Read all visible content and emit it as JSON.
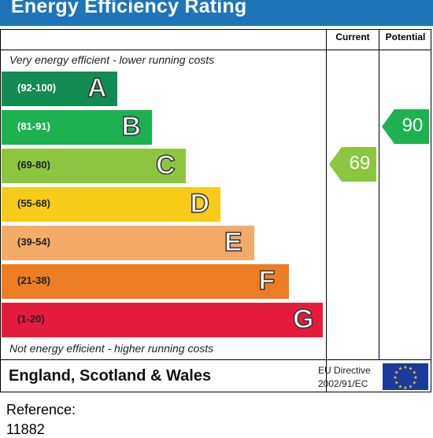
{
  "header": {
    "title": "Energy Efficiency Rating"
  },
  "columns": {
    "current": "Current",
    "potential": "Potential"
  },
  "captions": {
    "top": "Very energy efficient - lower running costs",
    "bottom": "Not energy efficient - higher running costs"
  },
  "chart_data": {
    "type": "bar",
    "title": "Energy Efficiency Rating",
    "bands": [
      {
        "letter": "A",
        "range": "(92-100)",
        "color": "#138b55",
        "range_color": "#ffffff"
      },
      {
        "letter": "B",
        "range": "(81-91)",
        "color": "#1db150",
        "range_color": "#ffffff"
      },
      {
        "letter": "C",
        "range": "(69-80)",
        "color": "#8cc641",
        "range_color": "#222222"
      },
      {
        "letter": "D",
        "range": "(55-68)",
        "color": "#f6cc18",
        "range_color": "#222222"
      },
      {
        "letter": "E",
        "range": "(39-54)",
        "color": "#f3ab69",
        "range_color": "#222222"
      },
      {
        "letter": "F",
        "range": "(21-38)",
        "color": "#ed7d24",
        "range_color": "#222222"
      },
      {
        "letter": "G",
        "range": "(1-20)",
        "color": "#e41b3b",
        "range_color": "#222222"
      }
    ],
    "current": {
      "value": 69,
      "band": "C",
      "color": "#8cc641"
    },
    "potential": {
      "value": 90,
      "band": "B",
      "color": "#1db150"
    }
  },
  "footer": {
    "region": "England, Scotland & Wales",
    "directive_line1": "EU Directive",
    "directive_line2": "2002/91/EC"
  },
  "reference": {
    "label": "Reference:",
    "value": "11882"
  }
}
